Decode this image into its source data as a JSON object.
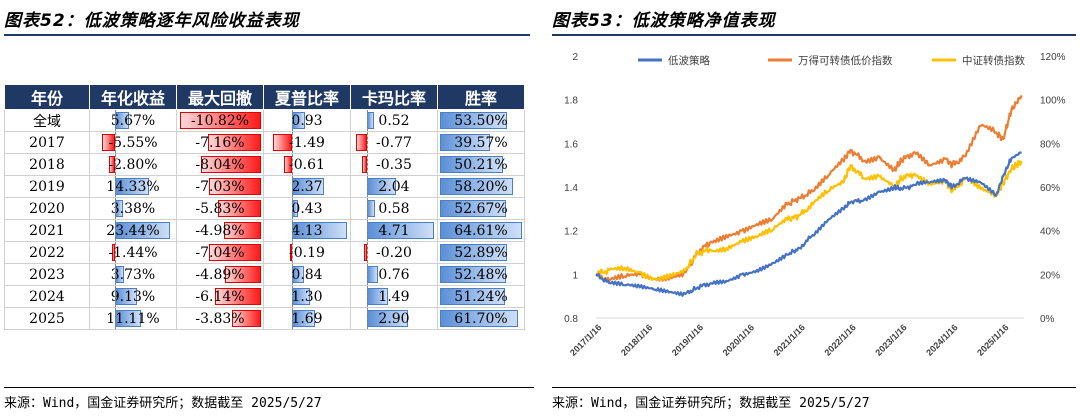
{
  "left_panel": {
    "title": "图表52：低波策略逐年风险收益表现",
    "source": "来源：Wind，国金证券研究所；数据截至 2025/5/27"
  },
  "right_panel": {
    "title": "图表53：低波策略净值表现",
    "source": "来源：Wind，国金证券研究所；数据截至 2025/5/27"
  },
  "colors": {
    "header_bg": "#1f3864",
    "pos_bar": "#5b8fd6",
    "neg_bar": "#ff1a1a",
    "series_low_vol": "#4472c4",
    "series_wande": "#ed7d31",
    "series_csi": "#ffc000"
  },
  "table": {
    "headers": [
      "年份",
      "年化收益",
      "最大回撤",
      "夏普比率",
      "卡玛比率",
      "胜率"
    ],
    "rows": [
      {
        "year": "全域",
        "ret": "5.67%",
        "dd": "-10.82%",
        "sharpe": "0.93",
        "calmar": "0.52",
        "win": "53.50%"
      },
      {
        "year": "2017",
        "ret": "-5.55%",
        "dd": "-7.16%",
        "sharpe": "-1.49",
        "calmar": "-0.77",
        "win": "39.57%"
      },
      {
        "year": "2018",
        "ret": "-2.80%",
        "dd": "-8.04%",
        "sharpe": "-0.61",
        "calmar": "-0.35",
        "win": "50.21%"
      },
      {
        "year": "2019",
        "ret": "14.33%",
        "dd": "-7.03%",
        "sharpe": "2.37",
        "calmar": "2.04",
        "win": "58.20%"
      },
      {
        "year": "2020",
        "ret": "3.38%",
        "dd": "-5.83%",
        "sharpe": "0.43",
        "calmar": "0.58",
        "win": "52.67%"
      },
      {
        "year": "2021",
        "ret": "23.44%",
        "dd": "-4.98%",
        "sharpe": "4.13",
        "calmar": "4.71",
        "win": "64.61%"
      },
      {
        "year": "2022",
        "ret": "-1.44%",
        "dd": "-7.04%",
        "sharpe": "-0.19",
        "calmar": "-0.20",
        "win": "52.89%"
      },
      {
        "year": "2023",
        "ret": "3.73%",
        "dd": "-4.89%",
        "sharpe": "0.84",
        "calmar": "0.76",
        "win": "52.48%"
      },
      {
        "year": "2024",
        "ret": "9.13%",
        "dd": "-6.14%",
        "sharpe": "1.30",
        "calmar": "1.49",
        "win": "51.24%"
      },
      {
        "year": "2025",
        "ret": "11.11%",
        "dd": "-3.83%",
        "sharpe": "1.69",
        "calmar": "2.90",
        "win": "61.70%"
      }
    ]
  },
  "chart_data": {
    "type": "line",
    "legend": [
      "低波策略",
      "万得可转债低价指数",
      "中证转债指数"
    ],
    "legend_position": "top",
    "x_tick_labels": [
      "2017/1/16",
      "2018/1/16",
      "2019/1/16",
      "2020/1/16",
      "2021/1/16",
      "2022/1/16",
      "2023/1/16",
      "2024/1/16",
      "2025/1/16"
    ],
    "y_left": {
      "ticks": [
        "0.8",
        "1",
        "1.2",
        "1.4",
        "1.6",
        "1.8",
        "2"
      ],
      "range": [
        0.8,
        2.0
      ]
    },
    "y_right": {
      "ticks": [
        "0%",
        "20%",
        "40%",
        "60%",
        "80%",
        "100%",
        "120%"
      ],
      "range": [
        0,
        120
      ]
    },
    "grid": false,
    "series": [
      {
        "name": "低波策略",
        "axis": "left",
        "x": [
          2017.04,
          2017.3,
          2017.6,
          2017.9,
          2018.2,
          2018.5,
          2018.8,
          2019.04,
          2019.3,
          2019.6,
          2019.9,
          2020.2,
          2020.5,
          2020.8,
          2021.04,
          2021.3,
          2021.6,
          2021.9,
          2022.04,
          2022.3,
          2022.6,
          2022.9,
          2023.04,
          2023.3,
          2023.6,
          2023.9,
          2024.04,
          2024.3,
          2024.6,
          2024.9,
          2025.04,
          2025.2,
          2025.4
        ],
        "y": [
          1.0,
          0.96,
          0.95,
          0.94,
          0.93,
          0.92,
          0.91,
          0.94,
          0.96,
          0.97,
          1.0,
          1.02,
          1.05,
          1.09,
          1.12,
          1.18,
          1.25,
          1.3,
          1.33,
          1.34,
          1.38,
          1.4,
          1.39,
          1.41,
          1.42,
          1.43,
          1.4,
          1.44,
          1.42,
          1.36,
          1.45,
          1.53,
          1.56
        ]
      },
      {
        "name": "万得可转债低价指数",
        "axis": "right",
        "x": [
          2017.04,
          2017.3,
          2017.6,
          2017.9,
          2018.2,
          2018.5,
          2018.8,
          2019.04,
          2019.3,
          2019.6,
          2019.9,
          2020.2,
          2020.5,
          2020.8,
          2021.04,
          2021.3,
          2021.6,
          2021.9,
          2022.04,
          2022.3,
          2022.6,
          2022.9,
          2023.04,
          2023.3,
          2023.6,
          2023.9,
          2024.04,
          2024.3,
          2024.6,
          2024.9,
          2025.04,
          2025.2,
          2025.4
        ],
        "y": [
          20,
          17,
          19,
          20,
          18,
          19,
          21,
          30,
          35,
          38,
          40,
          43,
          45,
          52,
          55,
          58,
          65,
          72,
          77,
          72,
          74,
          68,
          72,
          76,
          70,
          73,
          70,
          74,
          88,
          85,
          82,
          95,
          102
        ]
      },
      {
        "name": "中证转债指数",
        "axis": "right",
        "x": [
          2017.04,
          2017.3,
          2017.6,
          2017.9,
          2018.2,
          2018.5,
          2018.8,
          2019.04,
          2019.3,
          2019.6,
          2019.9,
          2020.2,
          2020.5,
          2020.8,
          2021.04,
          2021.3,
          2021.6,
          2021.9,
          2022.04,
          2022.3,
          2022.6,
          2022.9,
          2023.04,
          2023.3,
          2023.6,
          2023.9,
          2024.04,
          2024.3,
          2024.6,
          2024.9,
          2025.04,
          2025.2,
          2025.4
        ],
        "y": [
          20,
          22,
          23,
          21,
          18,
          20,
          22,
          30,
          31,
          32,
          35,
          37,
          40,
          45,
          47,
          52,
          58,
          62,
          70,
          64,
          65,
          60,
          64,
          66,
          62,
          63,
          58,
          64,
          59,
          56,
          62,
          68,
          72
        ]
      }
    ]
  }
}
